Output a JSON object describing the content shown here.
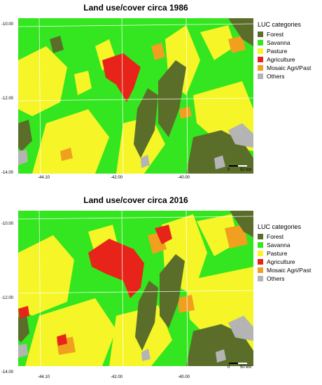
{
  "panels": [
    {
      "title": "Land use/cover circa 1986",
      "lat_labels": [
        "-10.00",
        "-12.00",
        "-14.00"
      ],
      "lon_labels": [
        "-44.10",
        "-42.00",
        "-40.00"
      ],
      "legend_title": "LUC categories",
      "scalebar": {
        "zero": "0",
        "distance": "50 km"
      }
    },
    {
      "title": "Land use/cover circa 2016",
      "lat_labels": [
        "-10.00",
        "-12.00",
        "-14.00"
      ],
      "lon_labels": [
        "-44.10",
        "-42.00",
        "-40.00"
      ],
      "legend_title": "LUC categories",
      "scalebar": {
        "zero": "0",
        "distance": "50 km"
      }
    }
  ],
  "legend_items": [
    {
      "label": "Forest",
      "color": "#5a6e2a"
    },
    {
      "label": "Savanna",
      "color": "#33e61f"
    },
    {
      "label": "Pasture",
      "color": "#f5f528"
    },
    {
      "label": "Agriculture",
      "color": "#e8241a"
    },
    {
      "label": "Mosaic Agri/Past",
      "color": "#f0a01e"
    },
    {
      "label": "Others",
      "color": "#b4b4b4"
    }
  ]
}
